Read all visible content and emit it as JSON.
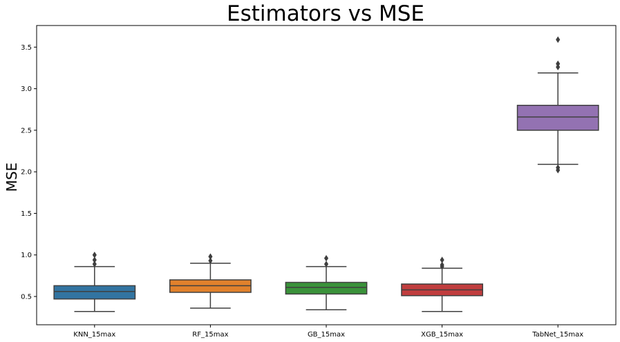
{
  "chart_data": {
    "type": "box",
    "title": "Estimators vs MSE",
    "xlabel": "",
    "ylabel": "MSE",
    "ylim": [
      0.16,
      3.76
    ],
    "yticks": [
      "0.5",
      "1.0",
      "1.5",
      "2.0",
      "2.5",
      "3.0",
      "3.5"
    ],
    "grid": false,
    "categories": [
      "KNN_15max",
      "RF_15max",
      "GB_15max",
      "XGB_15max",
      "TabNet_15max"
    ],
    "colors": [
      "#3274a1",
      "#e1812c",
      "#3a923a",
      "#c03d3e",
      "#9372b2"
    ],
    "boxes": [
      {
        "name": "KNN_15max",
        "whisker_low": 0.32,
        "q1": 0.47,
        "median": 0.56,
        "q3": 0.63,
        "whisker_high": 0.86,
        "outliers": [
          0.89,
          0.94,
          1.0
        ]
      },
      {
        "name": "RF_15max",
        "whisker_low": 0.36,
        "q1": 0.55,
        "median": 0.63,
        "q3": 0.7,
        "whisker_high": 0.9,
        "outliers": [
          0.93,
          0.98
        ]
      },
      {
        "name": "GB_15max",
        "whisker_low": 0.34,
        "q1": 0.53,
        "median": 0.61,
        "q3": 0.67,
        "whisker_high": 0.86,
        "outliers": [
          0.89,
          0.96
        ]
      },
      {
        "name": "XGB_15max",
        "whisker_low": 0.32,
        "q1": 0.51,
        "median": 0.58,
        "q3": 0.65,
        "whisker_high": 0.84,
        "outliers": [
          0.86,
          0.88,
          0.94
        ]
      },
      {
        "name": "TabNet_15max",
        "whisker_low": 2.09,
        "q1": 2.5,
        "median": 2.66,
        "q3": 2.8,
        "whisker_high": 3.19,
        "outliers": [
          2.02,
          2.05,
          3.26,
          3.3,
          3.59
        ]
      }
    ]
  }
}
